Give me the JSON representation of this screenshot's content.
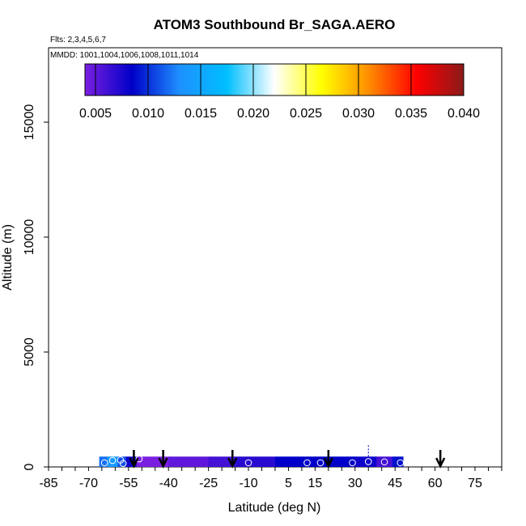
{
  "chart_data": {
    "type": "heatmap",
    "title": "ATOM3 Southbound Br_SAGA.AERO",
    "flights_note": "Flts: 2,3,4,5,6,7",
    "dates_note": "MMDD: 1001,1004,1006,1008,1011,1014",
    "xlabel": "Latitude (deg N)",
    "ylabel": "Altitude (m)",
    "xlim": [
      -85,
      85
    ],
    "ylim": [
      0,
      17500
    ],
    "x_ticks": [
      -85,
      -70,
      -55,
      -40,
      -25,
      -10,
      5,
      15,
      30,
      45,
      60,
      75
    ],
    "y_ticks": [
      0,
      5000,
      10000,
      15000
    ],
    "colorbar": {
      "min": 0.004,
      "max": 0.04,
      "ticks": [
        0.005,
        0.01,
        0.015,
        0.02,
        0.025,
        0.03,
        0.035,
        0.04
      ],
      "tick_labels": [
        "0.005",
        "0.010",
        "0.015",
        "0.020",
        "0.025",
        "0.030",
        "0.035",
        "0.040"
      ],
      "colors": [
        "#7a1fe0",
        "#0000c8",
        "#1e90ff",
        "#00bfff",
        "#ffffff",
        "#ffff00",
        "#ff8c00",
        "#ff0000",
        "#8b1a1a"
      ]
    },
    "band": {
      "lat_start": -66,
      "lat_end": 48,
      "alt_bottom": 0,
      "alt_top": 450,
      "segments": [
        {
          "lat_from": -66,
          "lat_to": -63,
          "value": 0.012
        },
        {
          "lat_from": -63,
          "lat_to": -59,
          "value": 0.014
        },
        {
          "lat_from": -59,
          "lat_to": -56,
          "value": 0.011
        },
        {
          "lat_from": -56,
          "lat_to": -52,
          "value": 0.008
        },
        {
          "lat_from": -52,
          "lat_to": -40,
          "value": 0.004
        },
        {
          "lat_from": -40,
          "lat_to": -25,
          "value": 0.005
        },
        {
          "lat_from": -25,
          "lat_to": -15,
          "value": 0.006
        },
        {
          "lat_from": -15,
          "lat_to": 0,
          "value": 0.007
        },
        {
          "lat_from": 0,
          "lat_to": 30,
          "value": 0.0085
        },
        {
          "lat_from": 30,
          "lat_to": 38,
          "value": 0.008
        },
        {
          "lat_from": 38,
          "lat_to": 44,
          "value": 0.006
        },
        {
          "lat_from": 44,
          "lat_to": 48,
          "value": 0.009
        }
      ]
    },
    "markers": [
      {
        "lat": -64,
        "alt": 180
      },
      {
        "lat": -61,
        "alt": 280
      },
      {
        "lat": -58,
        "alt": 300
      },
      {
        "lat": -57,
        "alt": 150
      },
      {
        "lat": -51,
        "alt": 350
      },
      {
        "lat": -10,
        "alt": 180
      },
      {
        "lat": 12,
        "alt": 180
      },
      {
        "lat": 17,
        "alt": 180
      },
      {
        "lat": 29,
        "alt": 180
      },
      {
        "lat": 35,
        "alt": 230
      },
      {
        "lat": 41,
        "alt": 220
      },
      {
        "lat": 47,
        "alt": 180
      }
    ],
    "arrows": [
      {
        "lat": -53
      },
      {
        "lat": -42
      },
      {
        "lat": -16
      },
      {
        "lat": 20
      },
      {
        "lat": 62
      }
    ],
    "spike": {
      "lat": 35,
      "alt_from": 450,
      "alt_to": 950
    }
  }
}
